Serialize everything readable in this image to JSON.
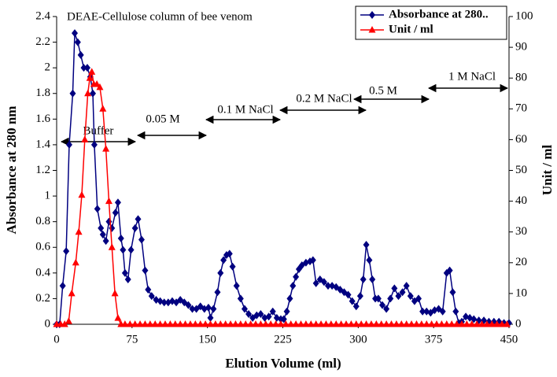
{
  "chart_data": {
    "type": "line",
    "xlabel": "Elution Volume (ml)",
    "ylabel": "Absorbance at 280 nm",
    "y2label": "Unit / ml",
    "annotations": [
      "DEAE-Cellulose column of bee venom",
      "Buffer",
      "0.05 M",
      "0.1 M NaCl",
      "0.2 M NaCl",
      "0.5 M",
      "1 M NaCl"
    ],
    "xlim": [
      0,
      450
    ],
    "xticks": [
      0,
      75,
      150,
      225,
      300,
      375,
      450
    ],
    "ylim": [
      0,
      2.4
    ],
    "yticks": [
      0,
      0.2,
      0.4,
      0.6,
      0.8,
      1,
      1.2,
      1.4,
      1.6,
      1.8,
      2,
      2.2,
      2.4
    ],
    "y2lim": [
      0,
      100
    ],
    "y2ticks": [
      0,
      10,
      20,
      30,
      40,
      50,
      60,
      70,
      80,
      90,
      100
    ],
    "legend": "upper right",
    "grid": false,
    "series": [
      {
        "name": "Absorbance at 280..",
        "color": "#000080",
        "marker": "diamond",
        "x": [
          0,
          3,
          6,
          9.5,
          12.5,
          16,
          18,
          21,
          24,
          27,
          30.5,
          33.5,
          36,
          37.5,
          40.5,
          44,
          46,
          49,
          52,
          55,
          58.5,
          61,
          64,
          66,
          68,
          71,
          74,
          78,
          81,
          84.5,
          88,
          91,
          94.5,
          99,
          103,
          107,
          111,
          115,
          119,
          123,
          127,
          131,
          135,
          139,
          143,
          147,
          151,
          153,
          156,
          160,
          163,
          166,
          169,
          172,
          175,
          179,
          183,
          187,
          191,
          195,
          199,
          203,
          207,
          211,
          215,
          219,
          223,
          226,
          229,
          232,
          235,
          238,
          241,
          244,
          248,
          252,
          255,
          258,
          262,
          266,
          270,
          274,
          278,
          282,
          286,
          290,
          294,
          298,
          302,
          305,
          308,
          311,
          314,
          317,
          320,
          324,
          328,
          332,
          336,
          340,
          344,
          348,
          352,
          356,
          360,
          364,
          368,
          372,
          376,
          380,
          384,
          388,
          391,
          394,
          397,
          400,
          403,
          407,
          411,
          415,
          420,
          425,
          430,
          435,
          440,
          445,
          450
        ],
        "values": [
          0,
          0,
          0.3,
          0.57,
          1.4,
          1.8,
          2.27,
          2.2,
          2.1,
          2.0,
          2.0,
          1.93,
          1.8,
          1.4,
          0.9,
          0.75,
          0.7,
          0.65,
          0.8,
          0.75,
          0.87,
          0.95,
          0.67,
          0.58,
          0.4,
          0.35,
          0.58,
          0.75,
          0.82,
          0.66,
          0.42,
          0.27,
          0.22,
          0.19,
          0.18,
          0.17,
          0.17,
          0.18,
          0.17,
          0.19,
          0.17,
          0.15,
          0.12,
          0.12,
          0.14,
          0.12,
          0.13,
          0.05,
          0.12,
          0.25,
          0.4,
          0.5,
          0.54,
          0.55,
          0.45,
          0.3,
          0.2,
          0.12,
          0.08,
          0.05,
          0.07,
          0.08,
          0.05,
          0.06,
          0.1,
          0.05,
          0.04,
          0.04,
          0.1,
          0.2,
          0.3,
          0.37,
          0.43,
          0.46,
          0.48,
          0.49,
          0.5,
          0.32,
          0.35,
          0.33,
          0.3,
          0.3,
          0.29,
          0.27,
          0.25,
          0.23,
          0.18,
          0.14,
          0.22,
          0.35,
          0.62,
          0.5,
          0.35,
          0.2,
          0.2,
          0.15,
          0.12,
          0.2,
          0.28,
          0.22,
          0.25,
          0.3,
          0.22,
          0.18,
          0.2,
          0.1,
          0.1,
          0.09,
          0.11,
          0.12,
          0.1,
          0.4,
          0.42,
          0.25,
          0.1,
          0.01,
          0.02,
          0.06,
          0.05,
          0.04,
          0.03,
          0.03,
          0.02,
          0.02,
          0.02,
          0.01,
          0.01
        ]
      },
      {
        "name": "Unit / ml",
        "color": "#ff0000",
        "marker": "triangle",
        "axis": "y2",
        "x": [
          0,
          4,
          8,
          12,
          15,
          19,
          22,
          25,
          28,
          31,
          33,
          35,
          37,
          40,
          43,
          46,
          49,
          52,
          55,
          58,
          61,
          64,
          68,
          73,
          78,
          83,
          88,
          93,
          98,
          103,
          108,
          113,
          118,
          123,
          128,
          133,
          138,
          143,
          148,
          153,
          158,
          163,
          168,
          173,
          178,
          183,
          188,
          193,
          198,
          203,
          208,
          213,
          218,
          223,
          228,
          233,
          238,
          243,
          248,
          253,
          258,
          263,
          268,
          273,
          278,
          283,
          288,
          293,
          298,
          303,
          308,
          313,
          318,
          323,
          328,
          333,
          338,
          343,
          348,
          353,
          358,
          363,
          368,
          373,
          378,
          383,
          388,
          393,
          398,
          403,
          408,
          413,
          418,
          423,
          428,
          433,
          438,
          443,
          448
        ],
        "values": [
          0,
          0,
          0,
          1,
          10,
          20,
          30,
          42,
          60,
          75,
          80,
          82,
          78,
          78,
          77,
          70,
          57,
          40,
          25,
          10,
          2,
          0,
          0,
          0,
          0,
          0,
          0,
          0,
          0,
          0,
          0,
          0,
          0,
          0,
          0,
          0,
          0,
          0,
          0,
          0,
          0,
          0,
          0,
          0,
          0,
          0,
          0,
          0,
          0,
          0,
          0,
          0,
          0,
          0,
          0,
          0,
          0,
          0,
          0,
          0,
          0,
          0,
          0,
          0,
          0,
          0,
          0,
          0,
          0,
          0,
          0,
          0,
          0,
          0,
          0,
          0,
          0,
          0,
          0,
          0,
          0,
          0,
          0,
          0,
          0,
          0,
          0,
          0,
          0,
          0,
          0,
          0,
          0,
          0,
          0,
          0,
          0,
          0,
          0
        ]
      }
    ]
  }
}
